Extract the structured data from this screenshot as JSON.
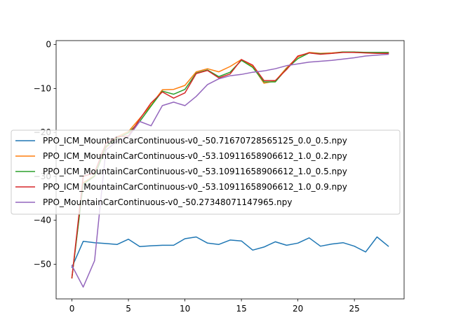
{
  "chart_data": {
    "type": "line",
    "title": "",
    "xlabel": "",
    "ylabel": "",
    "xlim": [
      -1.4,
      29.4
    ],
    "ylim": [
      -57.9,
      0.9
    ],
    "xticks": [
      0,
      5,
      10,
      15,
      20,
      25
    ],
    "yticks": [
      -50,
      -40,
      -30,
      -20,
      -10,
      0
    ],
    "grid": false,
    "legend_position": "center-left",
    "series": [
      {
        "name": "PPO_ICM_MountainCarContinuous-v0_-50.71670728565125_0.0_0.5.npy",
        "color": "#1f77b4",
        "x": [
          0,
          1,
          2,
          3,
          4,
          5,
          6,
          7,
          8,
          9,
          10,
          11,
          12,
          13,
          14,
          15,
          16,
          17,
          18,
          19,
          20,
          21,
          22,
          23,
          24,
          25,
          26,
          27,
          28
        ],
        "y": [
          -50.7,
          -44.8,
          -45.1,
          -45.3,
          -45.5,
          -44.3,
          -46.0,
          -45.8,
          -45.7,
          -45.7,
          -44.2,
          -43.8,
          -45.2,
          -45.5,
          -44.5,
          -44.7,
          -46.8,
          -46.1,
          -44.9,
          -45.7,
          -45.2,
          -44.0,
          -45.9,
          -45.4,
          -45.1,
          -45.9,
          -47.2,
          -43.8,
          -45.9
        ]
      },
      {
        "name": "PPO_ICM_MountainCarContinuous-v0_-53.10911658906612_1.0_0.2.npy",
        "color": "#ff7f0e",
        "x": [
          0,
          1,
          2,
          3,
          4,
          5,
          6,
          7,
          8,
          9,
          10,
          11,
          12,
          13,
          14,
          15,
          16,
          17,
          18,
          19,
          20,
          21,
          22,
          23,
          24,
          25,
          26,
          27,
          28
        ],
        "y": [
          -53.1,
          -31.5,
          -29.8,
          -23.5,
          -21.0,
          -19.8,
          -16.8,
          -13.8,
          -10.3,
          -10.2,
          -9.3,
          -6.2,
          -5.5,
          -6.2,
          -5.0,
          -3.4,
          -5.0,
          -8.8,
          -8.3,
          -5.3,
          -2.8,
          -1.8,
          -2.0,
          -1.9,
          -1.7,
          -1.8,
          -1.8,
          -1.9,
          -1.9
        ]
      },
      {
        "name": "PPO_ICM_MountainCarContinuous-v0_-53.10911658906612_1.0_0.5.npy",
        "color": "#2ca02c",
        "x": [
          0,
          1,
          2,
          3,
          4,
          5,
          6,
          7,
          8,
          9,
          10,
          11,
          12,
          13,
          14,
          15,
          16,
          17,
          18,
          19,
          20,
          21,
          22,
          23,
          24,
          25,
          26,
          27,
          28
        ],
        "y": [
          -53.1,
          -31.8,
          -30.0,
          -23.2,
          -21.3,
          -20.1,
          -17.5,
          -14.0,
          -10.6,
          -11.3,
          -10.2,
          -6.5,
          -5.8,
          -7.3,
          -6.3,
          -3.6,
          -5.2,
          -8.5,
          -8.5,
          -5.5,
          -3.2,
          -1.9,
          -2.1,
          -2.0,
          -1.7,
          -1.7,
          -1.8,
          -1.8,
          -1.8
        ]
      },
      {
        "name": "PPO_ICM_MountainCarContinuous-v0_-53.10911658906612_1.0_0.9.npy",
        "color": "#d62728",
        "x": [
          0,
          1,
          2,
          3,
          4,
          5,
          6,
          7,
          8,
          9,
          10,
          11,
          12,
          13,
          14,
          15,
          16,
          17,
          18,
          19,
          20,
          21,
          22,
          23,
          24,
          25,
          26,
          27,
          28
        ],
        "y": [
          -53.1,
          -30.0,
          -29.2,
          -22.5,
          -21.0,
          -20.8,
          -17.0,
          -13.3,
          -10.8,
          -12.2,
          -11.0,
          -6.6,
          -5.9,
          -7.6,
          -6.7,
          -3.4,
          -4.7,
          -8.2,
          -8.2,
          -5.7,
          -2.6,
          -1.9,
          -2.2,
          -2.0,
          -1.8,
          -1.8,
          -1.9,
          -2.0,
          -2.0
        ]
      },
      {
        "name": "PPO_MountainCarContinuous-v0_-50.27348071147965.npy",
        "color": "#9467bd",
        "x": [
          0,
          1,
          2,
          3,
          4,
          5,
          6,
          7,
          8,
          9,
          10,
          11,
          12,
          13,
          14,
          15,
          16,
          17,
          18,
          19,
          20,
          21,
          22,
          23,
          24,
          25,
          26,
          27,
          28
        ],
        "y": [
          -50.3,
          -55.2,
          -49.2,
          -24.0,
          -22.0,
          -21.0,
          -17.5,
          -18.5,
          -13.9,
          -13.1,
          -13.9,
          -11.8,
          -9.1,
          -7.8,
          -7.1,
          -6.8,
          -6.3,
          -6.0,
          -5.5,
          -4.8,
          -4.4,
          -4.0,
          -3.8,
          -3.6,
          -3.3,
          -3.0,
          -2.6,
          -2.4,
          -2.2
        ]
      }
    ]
  }
}
